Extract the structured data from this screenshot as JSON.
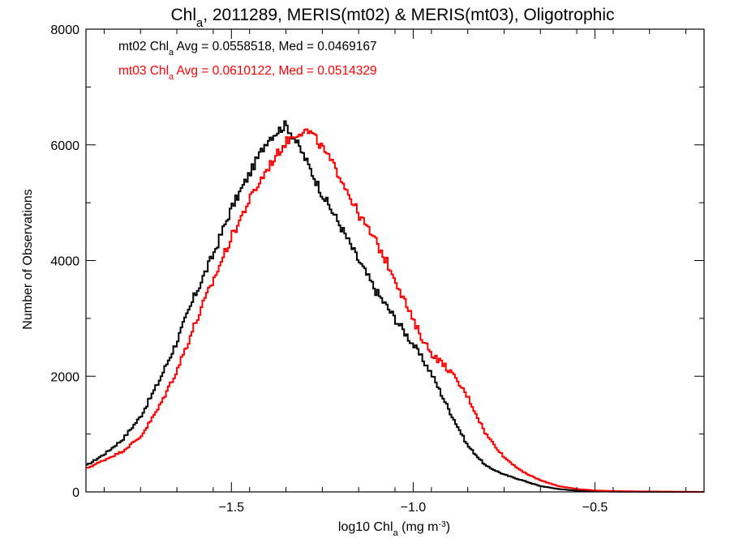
{
  "chart_data": {
    "type": "line",
    "style": "step-histogram",
    "title": {
      "prefix": "Chl",
      "subscript": "a",
      "rest": ", 2011289, MERIS(mt02) & MERIS(mt03), Oligotrophic"
    },
    "xlabel": {
      "prefix": "log10 Chl",
      "subscript": "a",
      "rest": " (mg m",
      "superscript": "-3",
      "close": ")"
    },
    "ylabel": "Number of Observations",
    "xlim": [
      -1.9,
      -0.2
    ],
    "ylim": [
      0,
      8000
    ],
    "xticks": [
      -1.5,
      -1.0,
      -0.5
    ],
    "xtick_labels": [
      "−1.5",
      "−1.0",
      "−0.5"
    ],
    "yticks": [
      0,
      2000,
      4000,
      6000,
      8000
    ],
    "ytick_labels": [
      "0",
      "2000",
      "4000",
      "6000",
      "8000"
    ],
    "annotations": [
      {
        "prefix": "mt02 Chl",
        "subscript": "a",
        "rest": " Avg = 0.0558518, Med = 0.0469167",
        "color": "#000000"
      },
      {
        "prefix": "mt03 Chl",
        "subscript": "a",
        "rest": " Avg = 0.0610122, Med = 0.0514329",
        "color": "#ff0000"
      }
    ],
    "series": [
      {
        "color": "#000000",
        "x": [
          -1.9,
          -1.85,
          -1.8,
          -1.75,
          -1.7,
          -1.65,
          -1.6,
          -1.55,
          -1.5,
          -1.45,
          -1.4,
          -1.37,
          -1.35,
          -1.33,
          -1.3,
          -1.25,
          -1.2,
          -1.15,
          -1.1,
          -1.05,
          -1.0,
          -0.97,
          -0.95,
          -0.9,
          -0.85,
          -0.8,
          -0.75,
          -0.7,
          -0.65,
          -0.6,
          -0.55,
          -0.5,
          -0.45,
          -0.4,
          -0.3,
          -0.2
        ],
        "values": [
          450,
          650,
          900,
          1300,
          1900,
          2600,
          3400,
          4100,
          4900,
          5500,
          6100,
          6250,
          6350,
          6150,
          5800,
          5150,
          4600,
          4000,
          3450,
          3000,
          2550,
          2250,
          2050,
          1400,
          800,
          450,
          300,
          200,
          100,
          50,
          20,
          10,
          5,
          3,
          1,
          0
        ]
      },
      {
        "color": "#ff0000",
        "x": [
          -1.9,
          -1.85,
          -1.8,
          -1.75,
          -1.7,
          -1.65,
          -1.6,
          -1.55,
          -1.5,
          -1.45,
          -1.4,
          -1.35,
          -1.32,
          -1.3,
          -1.28,
          -1.25,
          -1.2,
          -1.15,
          -1.1,
          -1.05,
          -1.0,
          -0.97,
          -0.95,
          -0.9,
          -0.85,
          -0.8,
          -0.75,
          -0.7,
          -0.65,
          -0.6,
          -0.55,
          -0.5,
          -0.45,
          -0.4,
          -0.3,
          -0.2
        ],
        "values": [
          400,
          550,
          700,
          950,
          1450,
          2100,
          2900,
          3650,
          4400,
          5050,
          5600,
          6050,
          6200,
          6250,
          6200,
          5950,
          5450,
          4800,
          4300,
          3700,
          2950,
          2600,
          2400,
          2100,
          1650,
          1000,
          600,
          350,
          200,
          100,
          50,
          25,
          15,
          10,
          5,
          0
        ]
      }
    ]
  }
}
